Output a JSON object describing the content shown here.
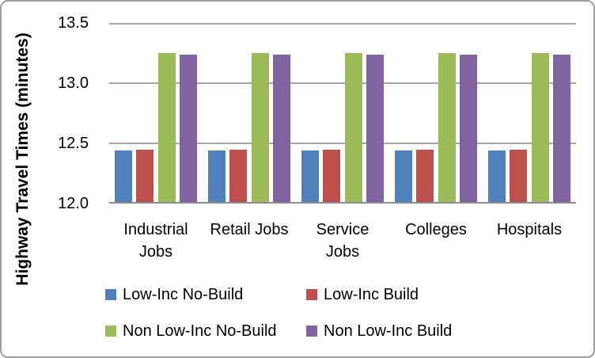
{
  "chart_data": {
    "type": "bar",
    "title": "",
    "xlabel": "",
    "ylabel": "Highway Travel Times (minutes)",
    "categories": [
      "Industrial\nJobs",
      "Retail Jobs",
      "Service\nJobs",
      "Colleges",
      "Hospitals"
    ],
    "series": [
      {
        "name": "Low-Inc No-Build",
        "color": "#4F81BD",
        "values": [
          12.44,
          12.44,
          12.44,
          12.44,
          12.44
        ]
      },
      {
        "name": "Low-Inc Build",
        "color": "#C0504D",
        "values": [
          12.45,
          12.45,
          12.45,
          12.45,
          12.45
        ]
      },
      {
        "name": "Non Low-Inc No-Build",
        "color": "#9BBB59",
        "values": [
          13.25,
          13.25,
          13.25,
          13.25,
          13.25
        ]
      },
      {
        "name": "Non Low-Inc Build",
        "color": "#8064A2",
        "values": [
          13.24,
          13.24,
          13.24,
          13.24,
          13.24
        ]
      }
    ],
    "ylim": [
      12.0,
      13.5
    ],
    "yticks": [
      12.0,
      12.5,
      13.0,
      13.5
    ],
    "ytick_labels": [
      "12.0",
      "12.5",
      "13.0",
      "13.5"
    ],
    "grid": true,
    "legend_position": "bottom",
    "gridline_color": "#A6A6A6",
    "axis_line_color": "#8C8C8C",
    "border_color": "#9D9D9D"
  }
}
